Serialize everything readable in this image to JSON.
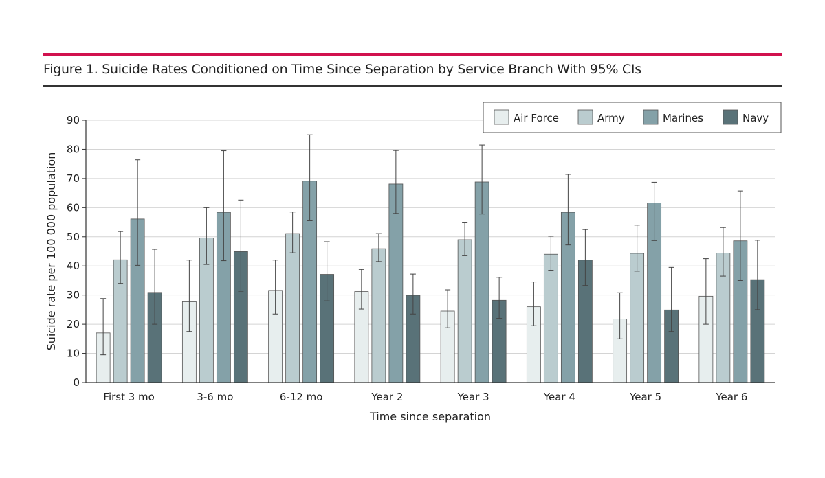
{
  "figure": {
    "title": "Figure 1. Suicide Rates Conditioned on Time Since Separation by Service Branch With 95% CIs",
    "accent_color": "#d1114e"
  },
  "chart_data": {
    "type": "bar",
    "title": "",
    "xlabel": "Time since separation",
    "ylabel": "Suicide rate per 100 000 population",
    "ylim": [
      0,
      90
    ],
    "yticks": [
      0,
      10,
      20,
      30,
      40,
      50,
      60,
      70,
      80,
      90
    ],
    "grid": true,
    "legend_position": "top-right",
    "error_bars": "95% CI",
    "categories": [
      "First 3 mo",
      "3-6 mo",
      "6-12 mo",
      "Year 2",
      "Year 3",
      "Year 4",
      "Year 5",
      "Year 6"
    ],
    "series": [
      {
        "name": "Air Force",
        "color": "#e7eeee",
        "values": [
          17,
          27.7,
          31.6,
          31.2,
          24.5,
          26,
          21.8,
          29.6
        ],
        "ci_low": [
          9.5,
          17.5,
          23.5,
          25.2,
          18.8,
          19.5,
          15,
          20
        ],
        "ci_high": [
          28.8,
          42,
          42,
          38.8,
          31.8,
          34.5,
          30.8,
          42.5
        ]
      },
      {
        "name": "Army",
        "color": "#bacccf",
        "values": [
          42.1,
          49.6,
          51.1,
          45.9,
          49,
          44,
          44.3,
          44.4
        ],
        "ci_low": [
          34,
          40.5,
          44.5,
          41.5,
          43.5,
          38.5,
          38.2,
          36.5
        ],
        "ci_high": [
          51.8,
          60,
          58.5,
          51.1,
          55,
          50.2,
          54,
          53.2
        ]
      },
      {
        "name": "Marines",
        "color": "#84a1a8",
        "values": [
          56.1,
          58.4,
          69.1,
          68.1,
          68.8,
          58.4,
          61.6,
          48.6
        ],
        "ci_low": [
          40.2,
          41.8,
          55.5,
          58,
          57.8,
          47.2,
          48.7,
          35
        ],
        "ci_high": [
          76.4,
          79.5,
          85,
          79.6,
          81.5,
          71.4,
          68.7,
          65.7
        ]
      },
      {
        "name": "Navy",
        "color": "#597278",
        "values": [
          30.9,
          44.9,
          37.1,
          29.9,
          28.2,
          42,
          24.9,
          35.3
        ],
        "ci_low": [
          20,
          31.3,
          28,
          23.5,
          22,
          33.3,
          17.5,
          25
        ],
        "ci_high": [
          45.7,
          62.6,
          48.3,
          37.2,
          36.1,
          52.5,
          39.5,
          48.8
        ]
      }
    ]
  }
}
